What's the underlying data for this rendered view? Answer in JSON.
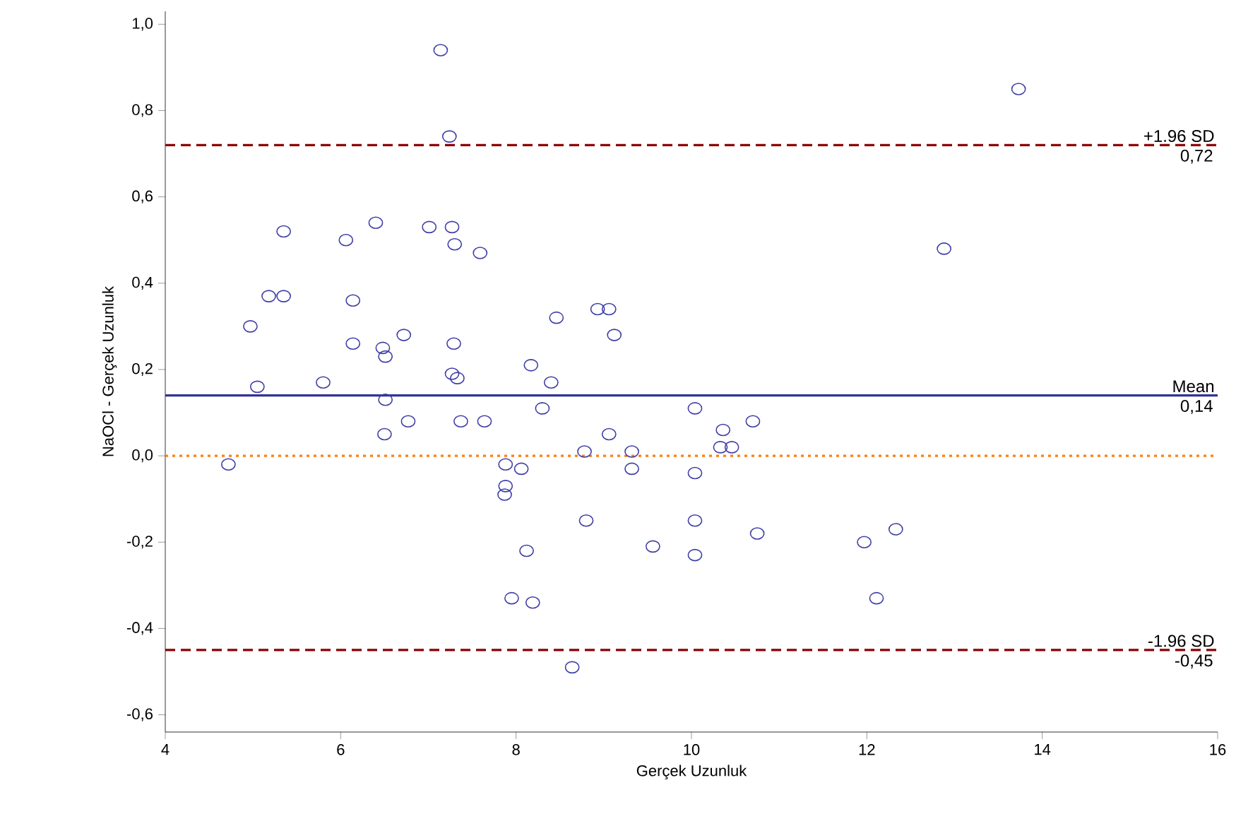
{
  "chart_data": {
    "type": "scatter",
    "xlabel": "Gerçek Uzunluk",
    "ylabel": "NaOCl - Gerçek Uzunluk",
    "xlim": [
      4,
      16
    ],
    "ylim": [
      -0.64,
      1.03
    ],
    "xticks": [
      4,
      6,
      8,
      10,
      12,
      14,
      16
    ],
    "yticks": [
      {
        "value": -0.6,
        "label": "-0,6"
      },
      {
        "value": -0.4,
        "label": "-0,4"
      },
      {
        "value": -0.2,
        "label": "-0,2"
      },
      {
        "value": 0,
        "label": "0,0"
      },
      {
        "value": 0.2,
        "label": "0,2"
      },
      {
        "value": 0.4,
        "label": "0,4"
      },
      {
        "value": 0.6,
        "label": "0,6"
      },
      {
        "value": 0.8,
        "label": "0,8"
      },
      {
        "value": 1.0,
        "label": "1,0"
      }
    ],
    "marker": "circle",
    "grid": false,
    "series": [
      {
        "color": "#3f3fa8",
        "x": [
          4.72,
          4.97,
          5.05,
          5.18,
          5.35,
          5.35,
          5.8,
          6.06,
          6.14,
          6.14,
          6.4,
          6.48,
          6.51,
          6.51,
          6.5,
          6.72,
          6.77,
          7.01,
          7.14,
          7.24,
          7.27,
          7.3,
          7.29,
          7.27,
          7.33,
          7.37,
          7.59,
          7.64,
          7.88,
          7.88,
          7.87,
          8.06,
          7.95,
          8.12,
          8.17,
          8.19,
          8.3,
          8.4,
          8.46,
          8.64,
          8.78,
          8.8,
          8.93,
          9.06,
          9.06,
          9.12,
          9.32,
          9.32,
          9.56,
          10.04,
          10.04,
          10.04,
          10.04,
          10.36,
          10.33,
          10.46,
          10.7,
          10.75,
          11.97,
          12.11,
          12.33,
          12.88,
          13.73
        ],
        "values": [
          -0.02,
          0.3,
          0.16,
          0.37,
          0.37,
          0.52,
          0.17,
          0.5,
          0.36,
          0.26,
          0.54,
          0.25,
          0.23,
          0.13,
          0.05,
          0.28,
          0.08,
          0.53,
          0.94,
          0.74,
          0.53,
          0.49,
          0.26,
          0.19,
          0.18,
          0.08,
          0.47,
          0.08,
          -0.02,
          -0.07,
          -0.09,
          -0.03,
          -0.33,
          -0.22,
          0.21,
          -0.34,
          0.11,
          0.17,
          0.32,
          -0.49,
          0.01,
          -0.15,
          0.34,
          0.34,
          0.05,
          0.28,
          0.01,
          -0.03,
          -0.21,
          0.11,
          -0.04,
          -0.15,
          -0.23,
          0.06,
          0.02,
          0.02,
          0.08,
          -0.18,
          -0.2,
          -0.33,
          -0.17,
          0.48,
          0.85
        ]
      }
    ],
    "ref_lines": [
      {
        "axis": "y",
        "value": 0.72,
        "label": "+1.96 SD",
        "color": "#8b0000",
        "line_style": "dashed"
      },
      {
        "axis": "y",
        "value": 0.14,
        "label": "Mean",
        "color": "#333399",
        "line_style": "solid"
      },
      {
        "axis": "y",
        "value": 0,
        "color": "#ff7f0e",
        "line_style": "dotted"
      },
      {
        "axis": "y",
        "value": -0.45,
        "label": "-1.96 SD",
        "color": "#8b0000",
        "line_style": "dashed"
      }
    ],
    "annotations": [
      {
        "text": "0,72",
        "y": 0.72
      },
      {
        "text": "0,14",
        "y": 0.14
      },
      {
        "text": "-0,45",
        "y": -0.45
      }
    ]
  }
}
